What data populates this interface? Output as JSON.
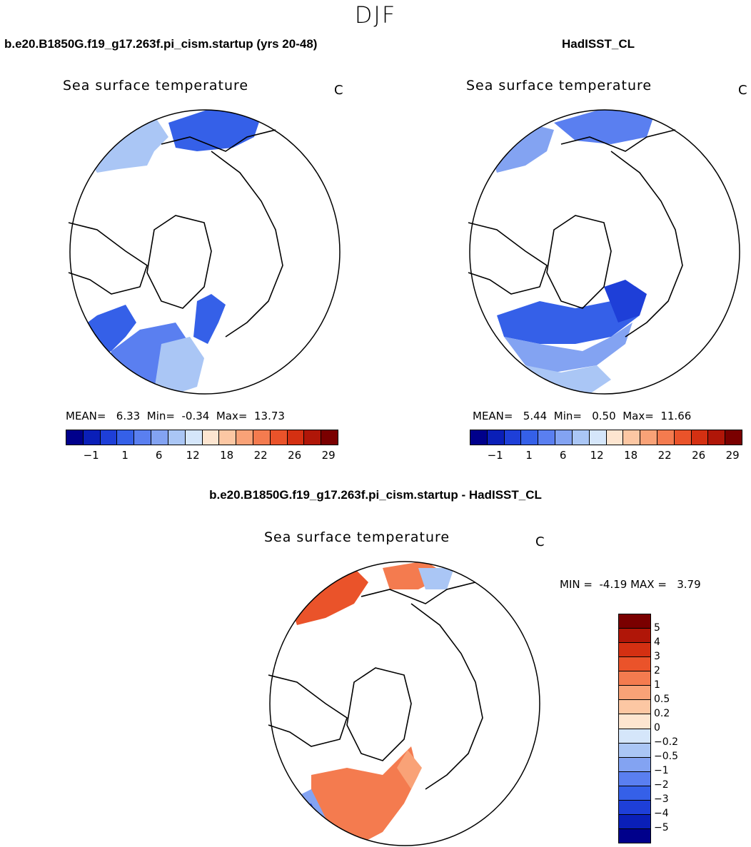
{
  "figure": {
    "season": "DJF"
  },
  "chart_data": [
    {
      "type": "heatmap",
      "case_title": "b.e20.B1850G.f19_g17.263f.pi_cism.startup (yrs 20-48)",
      "variable": "Sea surface temperature",
      "units": "C",
      "projection": "north polar stereographic",
      "stats": {
        "mean_label": "MEAN=",
        "mean": "6.33",
        "min_label": "Min=",
        "min": "-0.34",
        "max_label": "Max=",
        "max": "13.73"
      },
      "colorbar": {
        "colors": [
          "#00008b",
          "#0a1fb8",
          "#1e3fd8",
          "#3560e8",
          "#5a7ff0",
          "#83a3f2",
          "#aac6f5",
          "#d5e6fa",
          "#fde5d0",
          "#fcc7a3",
          "#f9a277",
          "#f47b4f",
          "#ea532a",
          "#d43012",
          "#b01608",
          "#7a0000"
        ],
        "tick_labels": [
          "-1",
          "1",
          "6",
          "12",
          "18",
          "22",
          "26",
          "29"
        ]
      }
    },
    {
      "type": "heatmap",
      "case_title": "HadISST_CL",
      "variable": "Sea surface temperature",
      "units": "C",
      "projection": "north polar stereographic",
      "stats": {
        "mean_label": "MEAN=",
        "mean": "5.44",
        "min_label": "Min=",
        "min": "0.50",
        "max_label": "Max=",
        "max": "11.66"
      },
      "colorbar": {
        "colors": [
          "#00008b",
          "#0a1fb8",
          "#1e3fd8",
          "#3560e8",
          "#5a7ff0",
          "#83a3f2",
          "#aac6f5",
          "#d5e6fa",
          "#fde5d0",
          "#fcc7a3",
          "#f9a277",
          "#f47b4f",
          "#ea532a",
          "#d43012",
          "#b01608",
          "#7a0000"
        ],
        "tick_labels": [
          "-1",
          "1",
          "6",
          "12",
          "18",
          "22",
          "26",
          "29"
        ]
      }
    },
    {
      "type": "heatmap",
      "case_title": "b.e20.B1850G.f19_g17.263f.pi_cism.startup - HadISST_CL",
      "variable": "Sea surface temperature",
      "units": "C",
      "projection": "north polar stereographic",
      "stats": {
        "min_label": "MIN =",
        "min": "-4.19",
        "max_label": "MAX =",
        "max": "3.79"
      },
      "colorbar": {
        "colors": [
          "#7a0000",
          "#b01608",
          "#d43012",
          "#ea532a",
          "#f47b4f",
          "#f9a277",
          "#fcc7a3",
          "#fde5d0",
          "#d5e6fa",
          "#aac6f5",
          "#83a3f2",
          "#5a7ff0",
          "#3560e8",
          "#1e3fd8",
          "#0a1fb8",
          "#00008b"
        ],
        "tick_labels": [
          "5",
          "4",
          "3",
          "2",
          "1",
          "0.5",
          "0.2",
          "0",
          "-0.2",
          "-0.5",
          "-1",
          "-2",
          "-3",
          "-4",
          "-5"
        ]
      }
    }
  ]
}
